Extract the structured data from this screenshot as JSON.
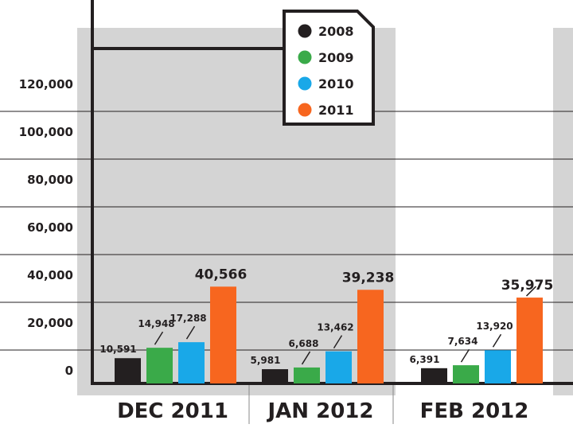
{
  "chart_data": {
    "type": "bar",
    "categories": [
      "DEC 2011",
      "JAN 2012",
      "FEB 2012"
    ],
    "series": [
      {
        "name": "2008",
        "values": [
          10591,
          5981,
          6391
        ]
      },
      {
        "name": "2009",
        "values": [
          14948,
          6688,
          7634
        ]
      },
      {
        "name": "2010",
        "values": [
          17288,
          13462,
          13920
        ]
      },
      {
        "name": "2011",
        "values": [
          40566,
          39238,
          35975
        ]
      }
    ],
    "value_labels": [
      [
        "10,591",
        "5,981",
        "6,391"
      ],
      [
        "14,948",
        "6,688",
        "7,634"
      ],
      [
        "17,288",
        "13,462",
        "13,920"
      ],
      [
        "40,566",
        "39,238",
        "35,975"
      ]
    ],
    "y_ticks": [
      {
        "value": 0,
        "label": "0"
      },
      {
        "value": 20000,
        "label": "20,000"
      },
      {
        "value": 40000,
        "label": "40,000"
      },
      {
        "value": 60000,
        "label": "60,000"
      },
      {
        "value": 80000,
        "label": "80,000"
      },
      {
        "value": 100000,
        "label": "100,000"
      },
      {
        "value": 120000,
        "label": "120,000"
      }
    ],
    "ylim": [
      0,
      140000
    ],
    "title": "",
    "xlabel": "",
    "ylabel": "",
    "grid": true,
    "legend_position": "top-center",
    "colors": {
      "2008": "#231f20",
      "2009": "#3aaa49",
      "2010": "#19a8e8",
      "2011": "#f7661f",
      "panel": "#d4d4d4",
      "axis": "#231f20",
      "gridline": "#231f20"
    }
  }
}
